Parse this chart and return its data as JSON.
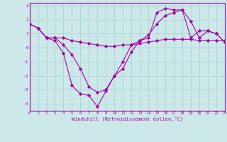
{
  "xlabel": "Windchill (Refroidissement éolien,°C)",
  "background_color": "#cce8e8",
  "grid_color": "#aad4d4",
  "line_color": "#aa00aa",
  "xlim": [
    0,
    23
  ],
  "ylim": [
    -4.5,
    3.2
  ],
  "xticks": [
    0,
    1,
    2,
    3,
    4,
    5,
    6,
    7,
    8,
    9,
    10,
    11,
    12,
    13,
    14,
    15,
    16,
    17,
    18,
    19,
    20,
    21,
    22,
    23
  ],
  "yticks": [
    -4,
    -3,
    -2,
    -1,
    0,
    1,
    2,
    3
  ],
  "line1_x": [
    0,
    1,
    2,
    3,
    4,
    5,
    6,
    7,
    8,
    9,
    10,
    11,
    12,
    13,
    14,
    15,
    16,
    17,
    18,
    19,
    20,
    21,
    22,
    23
  ],
  "line1_y": [
    1.7,
    1.4,
    0.7,
    0.7,
    0.7,
    0.5,
    0.4,
    0.3,
    0.2,
    0.1,
    0.1,
    0.2,
    0.2,
    0.3,
    0.4,
    0.5,
    0.6,
    0.6,
    0.6,
    0.6,
    0.5,
    0.5,
    0.5,
    0.5
  ],
  "line2_x": [
    0,
    1,
    2,
    3,
    4,
    5,
    6,
    7,
    8,
    9,
    10,
    11,
    12,
    13,
    14,
    15,
    16,
    17,
    18,
    19,
    20,
    21,
    22,
    23
  ],
  "line2_y": [
    1.7,
    1.4,
    0.7,
    0.5,
    -0.4,
    -2.7,
    -3.3,
    -3.4,
    -4.2,
    -3.1,
    -2.0,
    -1.5,
    -0.3,
    0.5,
    0.7,
    2.5,
    2.8,
    2.7,
    2.7,
    0.7,
    1.2,
    1.2,
    1.0,
    0.4
  ],
  "line3_x": [
    0,
    1,
    2,
    3,
    4,
    5,
    6,
    7,
    8,
    9,
    10,
    11,
    12,
    13,
    14,
    15,
    16,
    17,
    18,
    19,
    20,
    21,
    22,
    23
  ],
  "line3_y": [
    1.7,
    1.4,
    0.7,
    0.7,
    0.2,
    -0.5,
    -1.5,
    -2.8,
    -3.2,
    -3.0,
    -2.0,
    -1.0,
    0.2,
    0.5,
    0.9,
    1.7,
    2.3,
    2.5,
    2.7,
    1.9,
    0.7,
    1.2,
    1.0,
    0.4
  ]
}
